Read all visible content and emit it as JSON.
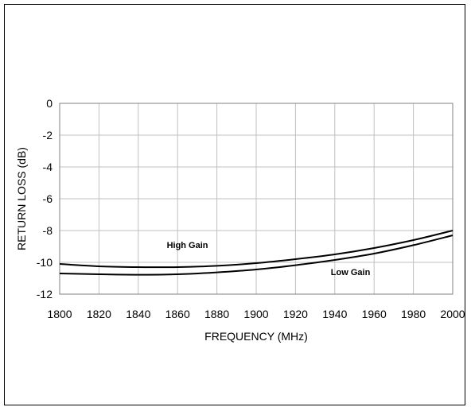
{
  "chart_data": {
    "type": "line",
    "xlabel": "FREQUENCY (MHz)",
    "ylabel": "RETURN LOSS (dB)",
    "xlim": [
      1800,
      2000
    ],
    "ylim": [
      -12,
      0
    ],
    "grid": true,
    "x_ticks": [
      1800,
      1820,
      1840,
      1860,
      1880,
      1900,
      1920,
      1940,
      1960,
      1980,
      2000
    ],
    "y_ticks": [
      0,
      -2,
      -4,
      -6,
      -8,
      -10,
      -12
    ],
    "x": [
      1800,
      1820,
      1840,
      1860,
      1880,
      1900,
      1920,
      1940,
      1960,
      1980,
      2000
    ],
    "series": [
      {
        "name": "High Gain",
        "values": [
          -10.1,
          -10.25,
          -10.3,
          -10.3,
          -10.22,
          -10.05,
          -9.8,
          -9.5,
          -9.1,
          -8.6,
          -8.0
        ]
      },
      {
        "name": "Low Gain",
        "values": [
          -10.7,
          -10.75,
          -10.78,
          -10.75,
          -10.63,
          -10.45,
          -10.18,
          -9.85,
          -9.45,
          -8.92,
          -8.3
        ]
      }
    ],
    "annotations": [
      {
        "text": "High Gain",
        "x": 1865,
        "y": -9.1
      },
      {
        "text": "Low Gain",
        "x": 1948,
        "y": -10.8
      }
    ],
    "line_color": "#000000",
    "grid_color": "#c0c0c0"
  }
}
